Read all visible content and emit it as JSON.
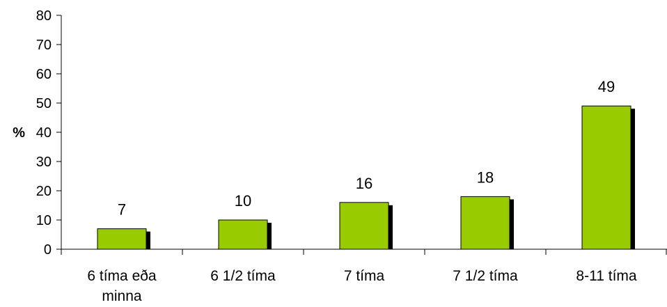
{
  "chart_data": {
    "type": "bar",
    "categories": [
      [
        "6 tíma eða",
        "minna"
      ],
      [
        "6 1/2 tíma"
      ],
      [
        "7 tíma"
      ],
      [
        "7 1/2 tíma"
      ],
      [
        "8-11 tíma"
      ]
    ],
    "values": [
      7,
      10,
      16,
      18,
      49
    ],
    "data_labels": [
      "7",
      "10",
      "16",
      "18",
      "49"
    ],
    "ylabel": "%",
    "xlabel": "",
    "title": "",
    "ylim": [
      0,
      80
    ],
    "yticks": [
      "0",
      "10",
      "20",
      "30",
      "40",
      "50",
      "60",
      "70",
      "80"
    ],
    "grid": false,
    "legend": "none",
    "colors": {
      "bar": "#99cc00",
      "shadow": "#000000",
      "axis": "#000000"
    }
  }
}
